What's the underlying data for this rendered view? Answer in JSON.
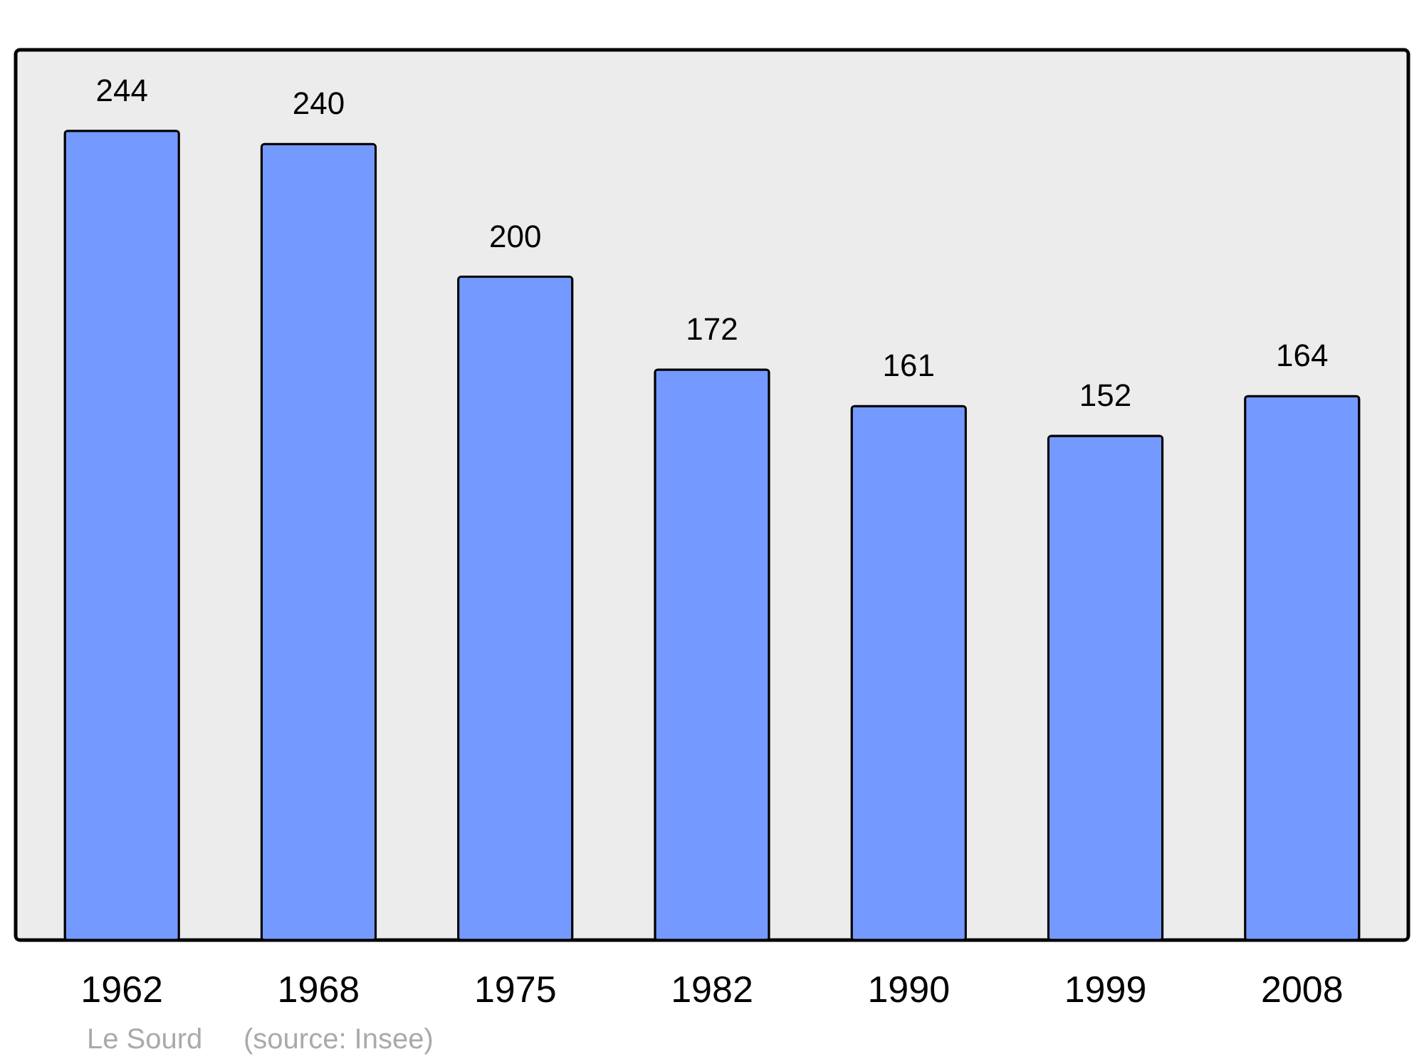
{
  "chart_data": {
    "type": "bar",
    "categories": [
      "1962",
      "1968",
      "1975",
      "1982",
      "1990",
      "1999",
      "2008"
    ],
    "values": [
      244,
      240,
      200,
      172,
      161,
      152,
      164
    ],
    "color": "#7499ff",
    "data_labels": true,
    "annotations": [
      "Le Sourd",
      "(source: Insee)"
    ]
  }
}
